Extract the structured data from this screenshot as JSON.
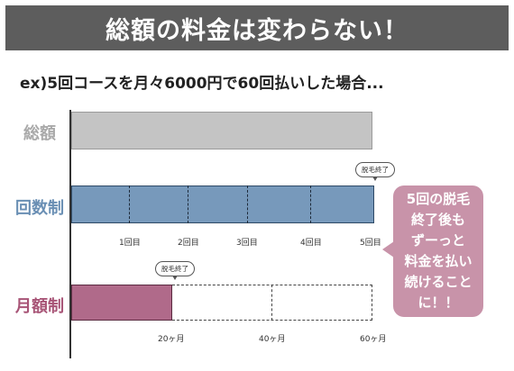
{
  "title": "総額の料金は変わらない！",
  "subtitle": "ex)5回コースを月々6000円で60回払いした場合...",
  "rows": {
    "total": {
      "label": "総額",
      "color": "#a9a9a9"
    },
    "kaisu": {
      "label": "回数制",
      "color": "#6a8fb4"
    },
    "getsu": {
      "label": "月額制",
      "color": "#a85577"
    }
  },
  "kaisu_ticks": [
    "1回目",
    "2回目",
    "3回目",
    "4回目",
    "5回目"
  ],
  "getsu_ticks": [
    "20ヶ月",
    "40ヶ月",
    "60ヶ月"
  ],
  "bubble_text": "脱毛終了",
  "callout_lines": [
    "5回の脱毛",
    "終了後も",
    "ずーっと",
    "料金を払い",
    "続けること",
    "に！！"
  ],
  "getsu_paid_fraction": 0.333
}
